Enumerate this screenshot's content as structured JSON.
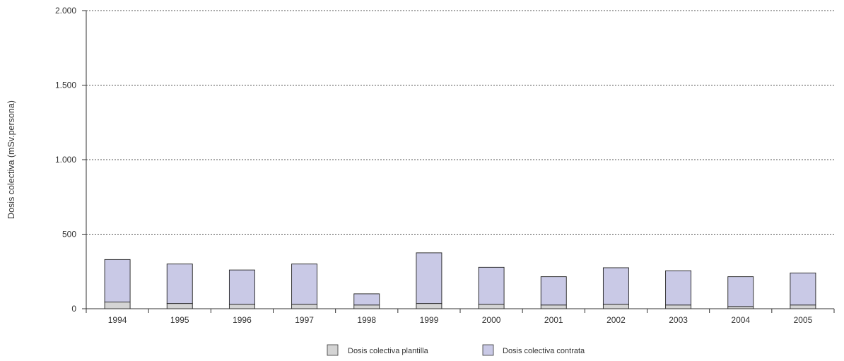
{
  "chart_data": {
    "type": "bar",
    "stacked": true,
    "title": "",
    "xlabel": "",
    "ylabel": "Dosis colectiva (mSv.persona)",
    "ylim": [
      0,
      2000
    ],
    "yticks": [
      0,
      500,
      1000,
      1500,
      2000
    ],
    "ytick_labels": [
      "0",
      "500",
      "1.000",
      "1.500",
      "2.000"
    ],
    "grid": "horizontal dotted",
    "legend_position": "bottom-center",
    "categories": [
      "1994",
      "1995",
      "1996",
      "1997",
      "1998",
      "1999",
      "2000",
      "2001",
      "2002",
      "2003",
      "2004",
      "2005"
    ],
    "series": [
      {
        "name": "Dosis colectiva plantilla",
        "color": "#d4d4d4",
        "values": [
          45,
          35,
          30,
          30,
          25,
          35,
          30,
          25,
          30,
          25,
          15,
          25
        ]
      },
      {
        "name": "Dosis colectiva contrata",
        "color": "#c9c9e6",
        "values": [
          285,
          265,
          230,
          270,
          75,
          340,
          248,
          190,
          245,
          230,
          200,
          215
        ]
      }
    ]
  }
}
